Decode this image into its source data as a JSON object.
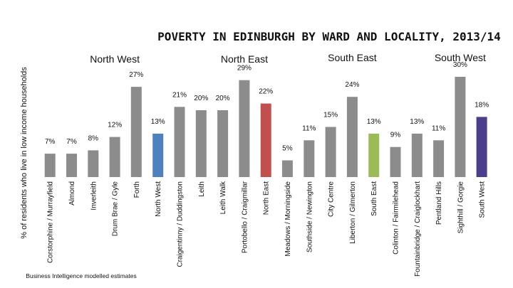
{
  "chart_data": {
    "type": "bar",
    "title": "POVERTY IN EDINBURGH BY WARD AND LOCALITY, 2013/14",
    "ylabel": "% of residents who live in low income households",
    "xlabel": "",
    "ylim": [
      0,
      32
    ],
    "grid": false,
    "legend": "none",
    "footnote": "Business Intelligence modelled estimates",
    "groups": [
      {
        "name": "North West",
        "start": 0,
        "end": 6
      },
      {
        "name": "North East",
        "start": 7,
        "end": 11
      },
      {
        "name": "South East",
        "start": 12,
        "end": 16
      },
      {
        "name": "South West",
        "start": 17,
        "end": 21
      }
    ],
    "categories": [
      "Corstorphine / Murrayfield",
      "Almond",
      "Inverleith",
      "Drum Brae / Gyle",
      "Forth",
      "North West",
      "Craigentinny / Duddingston",
      "Leith",
      "Leith Walk",
      "Portobello / Craigmillar",
      "North East",
      "Meadows / Morningside",
      "Southside / Newington",
      "City Centre",
      "Liberton / Gilmerton",
      "South East",
      "Colinton / Fairmilehead",
      "Fountainbridge / Craiglockhart",
      "Pentland Hills",
      "Sighthill / Gorgie",
      "South West"
    ],
    "values": [
      7,
      7,
      8,
      12,
      27,
      13,
      21,
      20,
      20,
      29,
      22,
      5,
      11,
      15,
      24,
      13,
      9,
      13,
      11,
      30,
      18
    ],
    "value_labels": [
      "7%",
      "7%",
      "8%",
      "12%",
      "27%",
      "13%",
      "21%",
      "20%",
      "20%",
      "29%",
      "22%",
      "5%",
      "11%",
      "15%",
      "24%",
      "13%",
      "9%",
      "13%",
      "11%",
      "30%",
      "18%"
    ],
    "colors": {
      "ward": "#8c8c8c",
      "north_west_total": "#4f81bd",
      "north_east_total": "#c0504d",
      "south_east_total": "#9bbb59",
      "south_west_total": "#4b3f8c"
    },
    "bar_colors": [
      "ward",
      "ward",
      "ward",
      "ward",
      "ward",
      "north_west_total",
      "ward",
      "ward",
      "ward",
      "ward",
      "north_east_total",
      "ward",
      "ward",
      "ward",
      "ward",
      "south_east_total",
      "ward",
      "ward",
      "ward",
      "ward",
      "south_west_total"
    ]
  }
}
